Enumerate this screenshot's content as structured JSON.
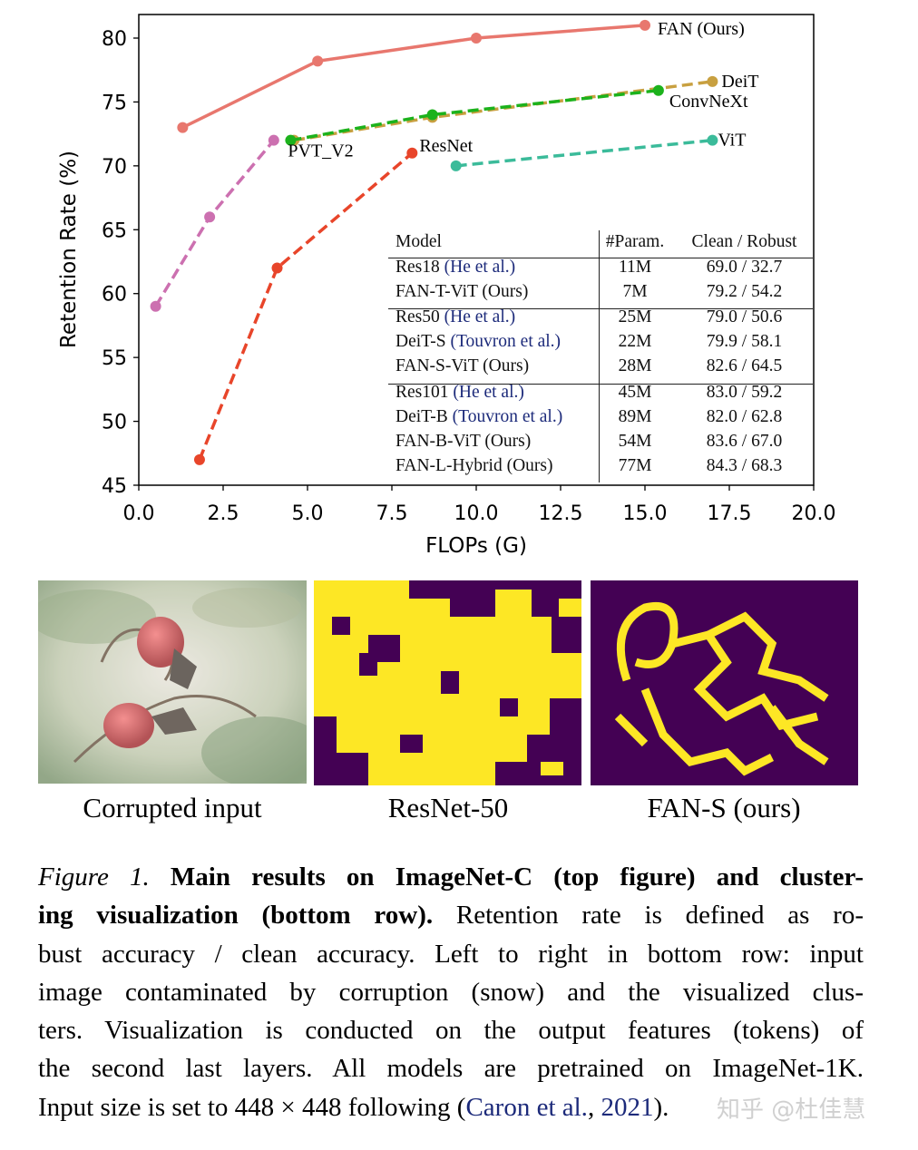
{
  "chart_data": {
    "type": "line",
    "xlabel": "FLOPs (G)",
    "ylabel": "Retention Rate (%)",
    "xlim": [
      0,
      20
    ],
    "ylim": [
      45,
      82
    ],
    "xticks": [
      "0.0",
      "2.5",
      "5.0",
      "7.5",
      "10.0",
      "12.5",
      "15.0",
      "17.5",
      "20.0"
    ],
    "yticks": [
      "45",
      "50",
      "55",
      "60",
      "65",
      "70",
      "75",
      "80"
    ],
    "grid": false,
    "series": [
      {
        "name": "FAN (Ours)",
        "color": "#e8776e",
        "style": "solid",
        "points": [
          [
            1.3,
            73.0
          ],
          [
            5.3,
            78.2
          ],
          [
            10.0,
            80.0
          ],
          [
            15.0,
            81.0
          ]
        ]
      },
      {
        "name": "DeiT",
        "color": "#c8a040",
        "style": "dashed",
        "points": [
          [
            4.6,
            72.0
          ],
          [
            8.7,
            73.8
          ],
          [
            17.0,
            76.6
          ]
        ]
      },
      {
        "name": "ConvNeXt",
        "color": "#1cb21c",
        "style": "dashed",
        "points": [
          [
            4.5,
            72.0
          ],
          [
            8.7,
            74.0
          ],
          [
            15.4,
            75.9
          ]
        ]
      },
      {
        "name": "PVT_V2",
        "color": "#cc70b0",
        "style": "dashed",
        "points": [
          [
            0.5,
            59.0
          ],
          [
            2.1,
            66.0
          ],
          [
            4.0,
            72.0
          ]
        ]
      },
      {
        "name": "ResNet",
        "color": "#e8452a",
        "style": "dashed",
        "points": [
          [
            1.8,
            47.0
          ],
          [
            4.1,
            62.0
          ],
          [
            8.1,
            71.0
          ]
        ]
      },
      {
        "name": "ViT",
        "color": "#3bbb9a",
        "style": "dashed",
        "points": [
          [
            9.4,
            70.0
          ],
          [
            17.0,
            72.0
          ]
        ]
      }
    ]
  },
  "table": {
    "headers": [
      "Model",
      "#Param.",
      "Clean / Robust"
    ],
    "rows": [
      {
        "model": "Res18 ",
        "cite": "(He et al.)",
        "params": "11M",
        "score": "69.0 / 32.7"
      },
      {
        "model": "FAN-T-ViT (Ours)",
        "cite": "",
        "params": "7M",
        "score": "79.2 / 54.2"
      },
      {
        "model": "Res50 ",
        "cite": "(He et al.)",
        "params": "25M",
        "score": "79.0 / 50.6"
      },
      {
        "model": "DeiT-S ",
        "cite": "(Touvron et al.)",
        "params": "22M",
        "score": "79.9 / 58.1"
      },
      {
        "model": "FAN-S-ViT (Ours)",
        "cite": "",
        "params": "28M",
        "score": "82.6 / 64.5"
      },
      {
        "model": "Res101 ",
        "cite": "(He et al.)",
        "params": "45M",
        "score": "83.0 / 59.2"
      },
      {
        "model": "DeiT-B ",
        "cite": "(Touvron et al.)",
        "params": "89M",
        "score": "82.0 / 62.8"
      },
      {
        "model": "FAN-B-ViT (Ours)",
        "cite": "",
        "params": "54M",
        "score": "83.6 / 67.0"
      },
      {
        "model": "FAN-L-Hybrid (Ours)",
        "cite": "",
        "params": "77M",
        "score": "84.3 / 68.3"
      }
    ]
  },
  "images": {
    "labels": [
      "Corrupted input",
      "ResNet-50",
      "FAN-S (ours)"
    ],
    "cluster_colors": {
      "background": "#440154",
      "foreground": "#fde725"
    }
  },
  "caption": {
    "lines": [
      [
        {
          "t": "Figure 1.",
          "s": "i"
        },
        {
          "t": " Main results on ImageNet-C (top figure) and cluster-",
          "s": "b"
        }
      ],
      [
        {
          "t": "ing visualization (bottom row).",
          "s": "b"
        },
        {
          "t": " Retention rate is defined as ro-",
          "s": ""
        }
      ],
      [
        {
          "t": "bust accuracy / clean accuracy. Left to right in bottom row: input",
          "s": ""
        }
      ],
      [
        {
          "t": "image contaminated by corruption (snow) and the visualized clus-",
          "s": ""
        }
      ],
      [
        {
          "t": "ters. Visualization is conducted on the output features (tokens) of",
          "s": ""
        }
      ],
      [
        {
          "t": "the second last layers. All models are pretrained on ImageNet-1K.",
          "s": ""
        }
      ],
      [
        {
          "t": "Input size is set to 448 × 448 following (",
          "s": ""
        },
        {
          "t": "Caron et al.",
          "s": "c"
        },
        {
          "t": ", ",
          "s": ""
        },
        {
          "t": "2021",
          "s": "c"
        },
        {
          "t": ").",
          "s": ""
        }
      ]
    ]
  },
  "watermark": "知乎 @杜佳慧"
}
